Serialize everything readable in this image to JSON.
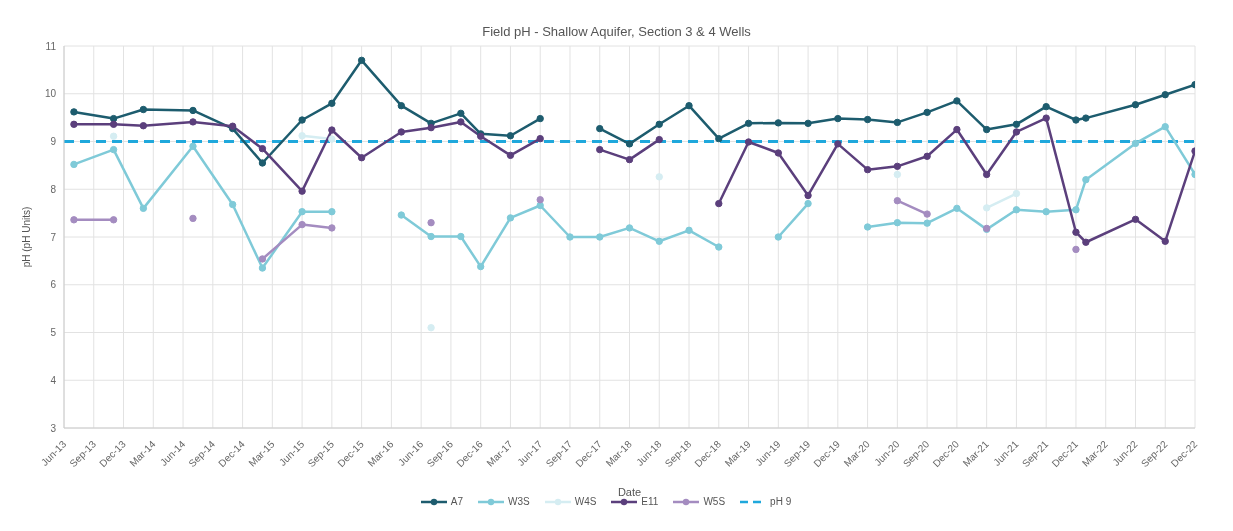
{
  "chart_data": {
    "type": "line",
    "title": "Field pH - Shallow Aquifer, Section 3 & 4 Wells",
    "xlabel": "Date",
    "ylabel": "pH (pH Units)",
    "x": [
      "2013-07",
      "2013-11",
      "2014-02",
      "2014-07",
      "2014-11",
      "2015-02",
      "2015-06",
      "2015-09",
      "2015-12",
      "2016-04",
      "2016-07",
      "2016-10",
      "2016-12",
      "2017-03",
      "2017-06",
      "2017-09",
      "2017-12",
      "2018-03",
      "2018-06",
      "2018-09",
      "2018-12",
      "2019-03",
      "2019-06",
      "2019-09",
      "2019-12",
      "2020-03",
      "2020-06",
      "2020-09",
      "2020-12",
      "2021-03",
      "2021-06",
      "2021-09",
      "2021-12",
      "2022-01",
      "2022-06",
      "2022-09",
      "2022-12"
    ],
    "series": [
      {
        "name": "A7",
        "color": "#1d5c6e",
        "values": [
          9.62,
          9.48,
          9.67,
          9.65,
          9.27,
          8.55,
          9.45,
          9.8,
          10.7,
          9.75,
          9.38,
          9.59,
          9.16,
          9.12,
          9.48,
          null,
          9.27,
          8.95,
          9.36,
          9.75,
          9.06,
          9.38,
          9.39,
          9.38,
          9.48,
          9.46,
          9.4,
          9.61,
          9.85,
          9.25,
          9.36,
          9.73,
          9.45,
          9.49,
          9.77,
          9.98,
          10.19
        ]
      },
      {
        "name": "W3S",
        "color": "#7fcad8",
        "values": [
          8.52,
          8.83,
          7.6,
          8.9,
          7.68,
          6.35,
          7.53,
          7.53,
          null,
          7.46,
          7.01,
          7.01,
          6.38,
          7.4,
          7.66,
          7.0,
          7.0,
          7.19,
          6.91,
          7.14,
          6.79,
          null,
          7.0,
          7.7,
          null,
          7.21,
          7.3,
          7.29,
          7.6,
          7.16,
          7.57,
          7.53,
          7.57,
          8.2,
          8.96,
          9.31,
          8.31
        ]
      },
      {
        "name": "W4S",
        "color": "#d5edf2",
        "values": [
          null,
          9.11,
          null,
          null,
          null,
          null,
          9.12,
          9.05,
          null,
          null,
          5.1,
          null,
          null,
          null,
          null,
          null,
          null,
          null,
          8.26,
          null,
          null,
          null,
          null,
          null,
          null,
          null,
          8.31,
          null,
          null,
          7.61,
          7.91,
          null,
          null,
          null,
          null,
          null,
          null
        ]
      },
      {
        "name": "E11",
        "color": "#5b3f7c",
        "values": [
          9.36,
          9.36,
          9.33,
          9.41,
          9.32,
          8.85,
          7.96,
          9.24,
          8.66,
          9.2,
          9.29,
          9.41,
          9.11,
          8.71,
          9.06,
          null,
          8.83,
          8.62,
          9.04,
          null,
          7.7,
          8.99,
          8.76,
          7.87,
          8.95,
          8.41,
          8.48,
          8.69,
          9.25,
          8.31,
          9.2,
          9.49,
          7.1,
          6.89,
          7.37,
          6.91,
          8.8
        ]
      },
      {
        "name": "W5S",
        "color": "#a48cc0",
        "values": [
          7.36,
          7.36,
          null,
          7.39,
          null,
          6.54,
          7.26,
          7.19,
          null,
          null,
          7.3,
          null,
          null,
          null,
          7.78,
          null,
          null,
          null,
          null,
          null,
          null,
          null,
          null,
          null,
          null,
          null,
          7.76,
          7.48,
          null,
          7.18,
          null,
          null,
          6.74,
          null,
          null,
          null,
          null
        ]
      }
    ],
    "ref_lines": [
      {
        "axis": "y",
        "value": 9,
        "label": "pH 9",
        "color": "#1fa8dc",
        "line_style": "dashed"
      }
    ],
    "xlim": [
      "2013-06",
      "2022-12"
    ],
    "xticks": [
      {
        "value": "2013-06",
        "label": "Jun-13"
      },
      {
        "value": "2013-09",
        "label": "Sep-13"
      },
      {
        "value": "2013-12",
        "label": "Dec-13"
      },
      {
        "value": "2014-03",
        "label": "Mar-14"
      },
      {
        "value": "2014-06",
        "label": "Jun-14"
      },
      {
        "value": "2014-09",
        "label": "Sep-14"
      },
      {
        "value": "2014-12",
        "label": "Dec-14"
      },
      {
        "value": "2015-03",
        "label": "Mar-15"
      },
      {
        "value": "2015-06",
        "label": "Jun-15"
      },
      {
        "value": "2015-09",
        "label": "Sep-15"
      },
      {
        "value": "2015-12",
        "label": "Dec-15"
      },
      {
        "value": "2016-03",
        "label": "Mar-16"
      },
      {
        "value": "2016-06",
        "label": "Jun-16"
      },
      {
        "value": "2016-09",
        "label": "Sep-16"
      },
      {
        "value": "2016-12",
        "label": "Dec-16"
      },
      {
        "value": "2017-03",
        "label": "Mar-17"
      },
      {
        "value": "2017-06",
        "label": "Jun-17"
      },
      {
        "value": "2017-09",
        "label": "Sep-17"
      },
      {
        "value": "2017-12",
        "label": "Dec-17"
      },
      {
        "value": "2018-03",
        "label": "Mar-18"
      },
      {
        "value": "2018-06",
        "label": "Jun-18"
      },
      {
        "value": "2018-09",
        "label": "Sep-18"
      },
      {
        "value": "2018-12",
        "label": "Dec-18"
      },
      {
        "value": "2019-03",
        "label": "Mar-19"
      },
      {
        "value": "2019-06",
        "label": "Jun-19"
      },
      {
        "value": "2019-09",
        "label": "Sep-19"
      },
      {
        "value": "2019-12",
        "label": "Dec-19"
      },
      {
        "value": "2020-03",
        "label": "Mar-20"
      },
      {
        "value": "2020-06",
        "label": "Jun-20"
      },
      {
        "value": "2020-09",
        "label": "Sep-20"
      },
      {
        "value": "2020-12",
        "label": "Dec-20"
      },
      {
        "value": "2021-03",
        "label": "Mar-21"
      },
      {
        "value": "2021-06",
        "label": "Jun-21"
      },
      {
        "value": "2021-09",
        "label": "Sep-21"
      },
      {
        "value": "2021-12",
        "label": "Dec-21"
      },
      {
        "value": "2022-03",
        "label": "Mar-22"
      },
      {
        "value": "2022-06",
        "label": "Jun-22"
      },
      {
        "value": "2022-09",
        "label": "Sep-22"
      },
      {
        "value": "2022-12",
        "label": "Dec-22"
      }
    ],
    "ylim": [
      3,
      11
    ],
    "yticks": [
      3,
      4,
      5,
      6,
      7,
      8,
      9,
      10,
      11
    ],
    "grid": true,
    "legend": "bottom",
    "marker": "circle",
    "line_style": "solid"
  }
}
